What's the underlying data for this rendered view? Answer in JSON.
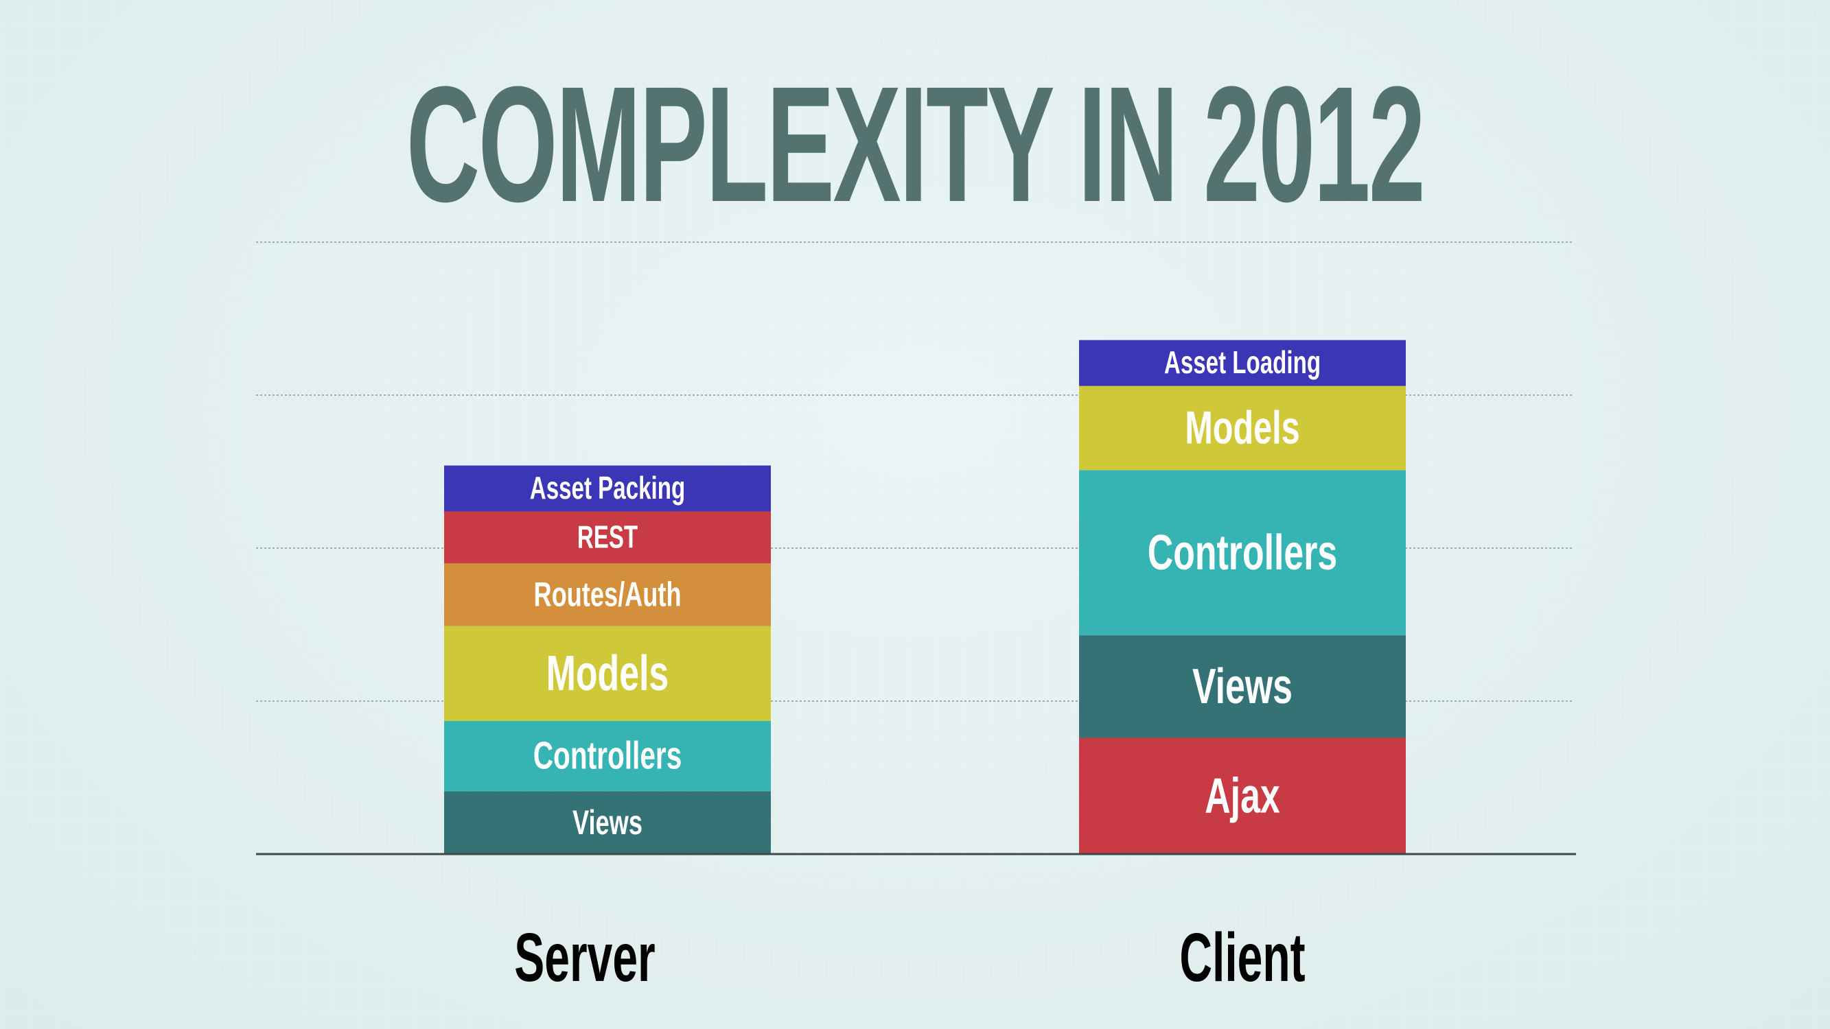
{
  "title": "COMPLEXITY IN 2012",
  "chart_data": {
    "type": "bar",
    "stacked": true,
    "title": "COMPLEXITY IN 2012",
    "categories": [
      "Server",
      "Client"
    ],
    "ylim": [
      0,
      4
    ],
    "gridlines": [
      1,
      2,
      3,
      4
    ],
    "bars": [
      {
        "category": "Server",
        "segments": [
          {
            "label": "Views",
            "value": 0.41,
            "color": "#347276"
          },
          {
            "label": "Controllers",
            "value": 0.46,
            "color": "#36b4b3"
          },
          {
            "label": "Models",
            "value": 0.62,
            "color": "#cfc93a"
          },
          {
            "label": "Routes/Auth",
            "value": 0.41,
            "color": "#d38f3c"
          },
          {
            "label": "REST",
            "value": 0.34,
            "color": "#c83a44"
          },
          {
            "label": "Asset Packing",
            "value": 0.3,
            "color": "#3a36b5"
          }
        ]
      },
      {
        "category": "Client",
        "segments": [
          {
            "label": "Ajax",
            "value": 0.76,
            "color": "#c83a44"
          },
          {
            "label": "Views",
            "value": 0.67,
            "color": "#347276"
          },
          {
            "label": "Controllers",
            "value": 1.08,
            "color": "#36b4b3"
          },
          {
            "label": "Models",
            "value": 0.55,
            "color": "#cfc93a"
          },
          {
            "label": "Asset Loading",
            "value": 0.3,
            "color": "#3a36b5"
          }
        ]
      }
    ]
  }
}
